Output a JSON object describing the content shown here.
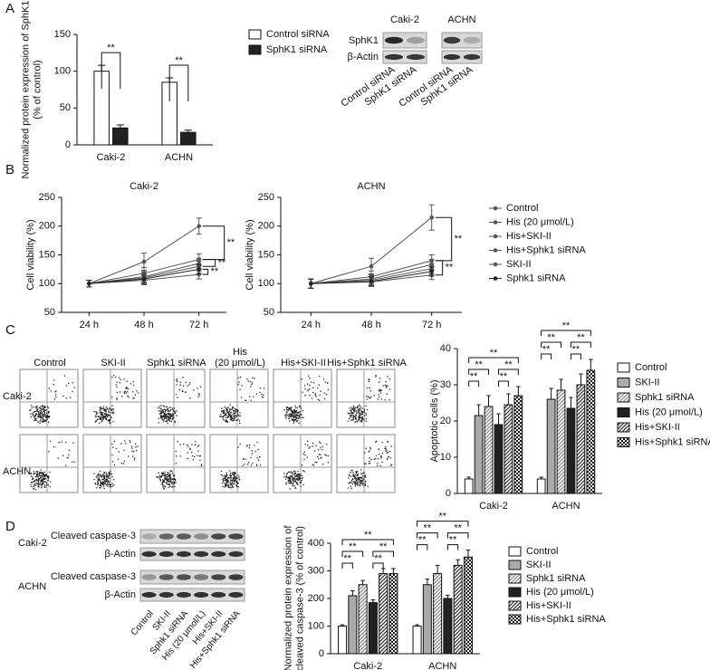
{
  "panel_labels": [
    "A",
    "B",
    "C",
    "D"
  ],
  "blot_A": {
    "cell_lines": [
      "Caki-2",
      "ACHN"
    ],
    "rows": [
      "SphK1",
      "β-Actin"
    ],
    "lanes": [
      "Control siRNA",
      "SphK1 siRNA",
      "Control siRNA",
      "SphK1 siRNA"
    ]
  },
  "flow_C": {
    "columns": [
      [
        "Control"
      ],
      [
        "SKI-II"
      ],
      [
        "Sphk1 siRNA"
      ],
      [
        "His",
        "(20 μmol/L)"
      ],
      [
        "His+SKI-II"
      ],
      [
        "His+Sphk1 siRNA"
      ]
    ],
    "rows": [
      "Caki-2",
      "ACHN"
    ]
  },
  "blot_D": {
    "cell_lines": [
      "Caki-2",
      "ACHN"
    ],
    "rows": [
      "Cleaved caspase-3",
      "β-Actin"
    ],
    "lanes": [
      "Control",
      "SKI-II",
      "Sphk1 siRNA",
      "His (20 μmol/L)",
      "His+SKI-II",
      "His+Sphk1 siRNA"
    ]
  },
  "chart_data": [
    {
      "type": "bar",
      "y_label": [
        "Normalized protein expression of SphK1",
        "(% of control)"
      ],
      "categories": [
        "Caki-2",
        "ACHN"
      ],
      "series": [
        {
          "name": "Control siRNA",
          "color": "#ffffff",
          "values": [
            100,
            85
          ],
          "errors": [
            8,
            6
          ]
        },
        {
          "name": "SphK1 siRNA",
          "color": "#222222",
          "values": [
            23,
            17
          ],
          "errors": [
            4,
            3
          ]
        }
      ],
      "ylim": [
        0,
        150
      ],
      "yticks": [
        0,
        50,
        100,
        150
      ],
      "legend": true,
      "annotations": [
        "**",
        "**"
      ]
    },
    {
      "type": "line",
      "title": "Caki-2",
      "y_label": [
        "Cell viability (%)"
      ],
      "categories": [
        "24 h",
        "48 h",
        "72 h"
      ],
      "series": [
        {
          "color": "#555555",
          "values": [
            100,
            138,
            200
          ],
          "errors": [
            6,
            15,
            14
          ]
        },
        {
          "color": "#555555",
          "values": [
            100,
            118,
            142
          ],
          "errors": [
            6,
            10,
            10
          ]
        },
        {
          "color": "#555555",
          "values": [
            100,
            112,
            135
          ],
          "errors": [
            6,
            9,
            9
          ]
        },
        {
          "color": "#555555",
          "values": [
            100,
            110,
            130
          ],
          "errors": [
            6,
            9,
            9
          ]
        },
        {
          "color": "#555555",
          "values": [
            100,
            106,
            116
          ],
          "errors": [
            6,
            8,
            8
          ]
        },
        {
          "color": "#222222",
          "values": [
            100,
            108,
            125
          ],
          "errors": [
            6,
            8,
            8
          ]
        }
      ],
      "ylim": [
        50,
        250
      ],
      "yticks": [
        50,
        100,
        150,
        200,
        250
      ],
      "annotations": [
        "**",
        "**",
        "**"
      ]
    },
    {
      "type": "line",
      "title": "ACHN",
      "y_label": [
        "Cell viability (%)"
      ],
      "categories": [
        "24 h",
        "48 h",
        "72 h"
      ],
      "series": [
        {
          "name": "Control",
          "color": "#555555",
          "values": [
            100,
            130,
            215
          ],
          "errors": [
            8,
            14,
            22
          ]
        },
        {
          "name": "His (20 μmol/L)",
          "color": "#555555",
          "values": [
            100,
            112,
            140
          ],
          "errors": [
            8,
            10,
            10
          ]
        },
        {
          "name": "His+SKI-II",
          "color": "#555555",
          "values": [
            100,
            108,
            133
          ],
          "errors": [
            8,
            9,
            9
          ]
        },
        {
          "name": "His+Sphk1 siRNA",
          "color": "#555555",
          "values": [
            100,
            106,
            126
          ],
          "errors": [
            8,
            9,
            9
          ]
        },
        {
          "name": "SKI-II",
          "color": "#555555",
          "values": [
            100,
            103,
            115
          ],
          "errors": [
            8,
            8,
            8
          ]
        },
        {
          "name": "Sphk1 siRNA",
          "color": "#222222",
          "values": [
            100,
            104,
            121
          ],
          "errors": [
            8,
            8,
            8
          ]
        }
      ],
      "ylim": [
        50,
        250
      ],
      "yticks": [
        50,
        100,
        150,
        200,
        250
      ],
      "legend": true,
      "annotations": [
        "**",
        "**"
      ]
    },
    {
      "type": "bar",
      "y_label": [
        "Apoptotic cells (%)"
      ],
      "categories": [
        "Caki-2",
        "ACHN"
      ],
      "series": [
        {
          "name": "Control",
          "color": "#ffffff",
          "values": [
            4,
            4
          ],
          "errors": [
            0.5,
            0.5
          ]
        },
        {
          "name": "SKI-II",
          "color": "#aaaaaa",
          "values": [
            21.5,
            26
          ],
          "errors": [
            3,
            3
          ]
        },
        {
          "name": "Sphk1 siRNA",
          "color": "#888888",
          "pattern": "hatch",
          "values": [
            24,
            28.5
          ],
          "errors": [
            3,
            3
          ]
        },
        {
          "name": "His (20 μmol/L)",
          "color": "#222222",
          "values": [
            19,
            23.5
          ],
          "errors": [
            3,
            3
          ]
        },
        {
          "name": "His+SKI-II",
          "color": "#333333",
          "pattern": "hatch",
          "values": [
            24.5,
            30
          ],
          "errors": [
            3,
            3
          ]
        },
        {
          "name": "His+Sphk1 siRNA",
          "color": "#111111",
          "pattern": "checker",
          "values": [
            27,
            34
          ],
          "errors": [
            2.5,
            3
          ]
        }
      ],
      "ylim": [
        0,
        40
      ],
      "yticks": [
        0,
        10,
        20,
        30,
        40
      ],
      "legend": true,
      "annotations": [
        "**",
        "**",
        "**",
        "**",
        "**",
        "**",
        "**",
        "**",
        "**",
        "**"
      ]
    },
    {
      "type": "bar",
      "y_label": [
        "Normalized protein expression of",
        "cleaved caspase-3 (% of control)"
      ],
      "categories": [
        "Caki-2",
        "ACHN"
      ],
      "series": [
        {
          "name": "Control",
          "color": "#ffffff",
          "values": [
            100,
            100
          ],
          "errors": [
            5,
            5
          ]
        },
        {
          "name": "SKI-II",
          "color": "#aaaaaa",
          "values": [
            210,
            250
          ],
          "errors": [
            18,
            20
          ]
        },
        {
          "name": "Sphk1 siRNA",
          "color": "#888888",
          "pattern": "hatch",
          "values": [
            250,
            290
          ],
          "errors": [
            15,
            30
          ]
        },
        {
          "name": "His (20 μmol/L)",
          "color": "#222222",
          "values": [
            185,
            200
          ],
          "errors": [
            10,
            12
          ]
        },
        {
          "name": "His+SKI-II",
          "color": "#333333",
          "pattern": "hatch",
          "values": [
            290,
            320
          ],
          "errors": [
            18,
            20
          ]
        },
        {
          "name": "His+Sphk1 siRNA",
          "color": "#111111",
          "pattern": "checker",
          "values": [
            290,
            350
          ],
          "errors": [
            18,
            25
          ]
        }
      ],
      "ylim": [
        0,
        400
      ],
      "yticks": [
        0,
        100,
        200,
        300,
        400
      ],
      "legend": true,
      "annotations": [
        "**",
        "**",
        "**",
        "**",
        "**",
        "**",
        "**",
        "**",
        "**",
        "**"
      ]
    }
  ]
}
